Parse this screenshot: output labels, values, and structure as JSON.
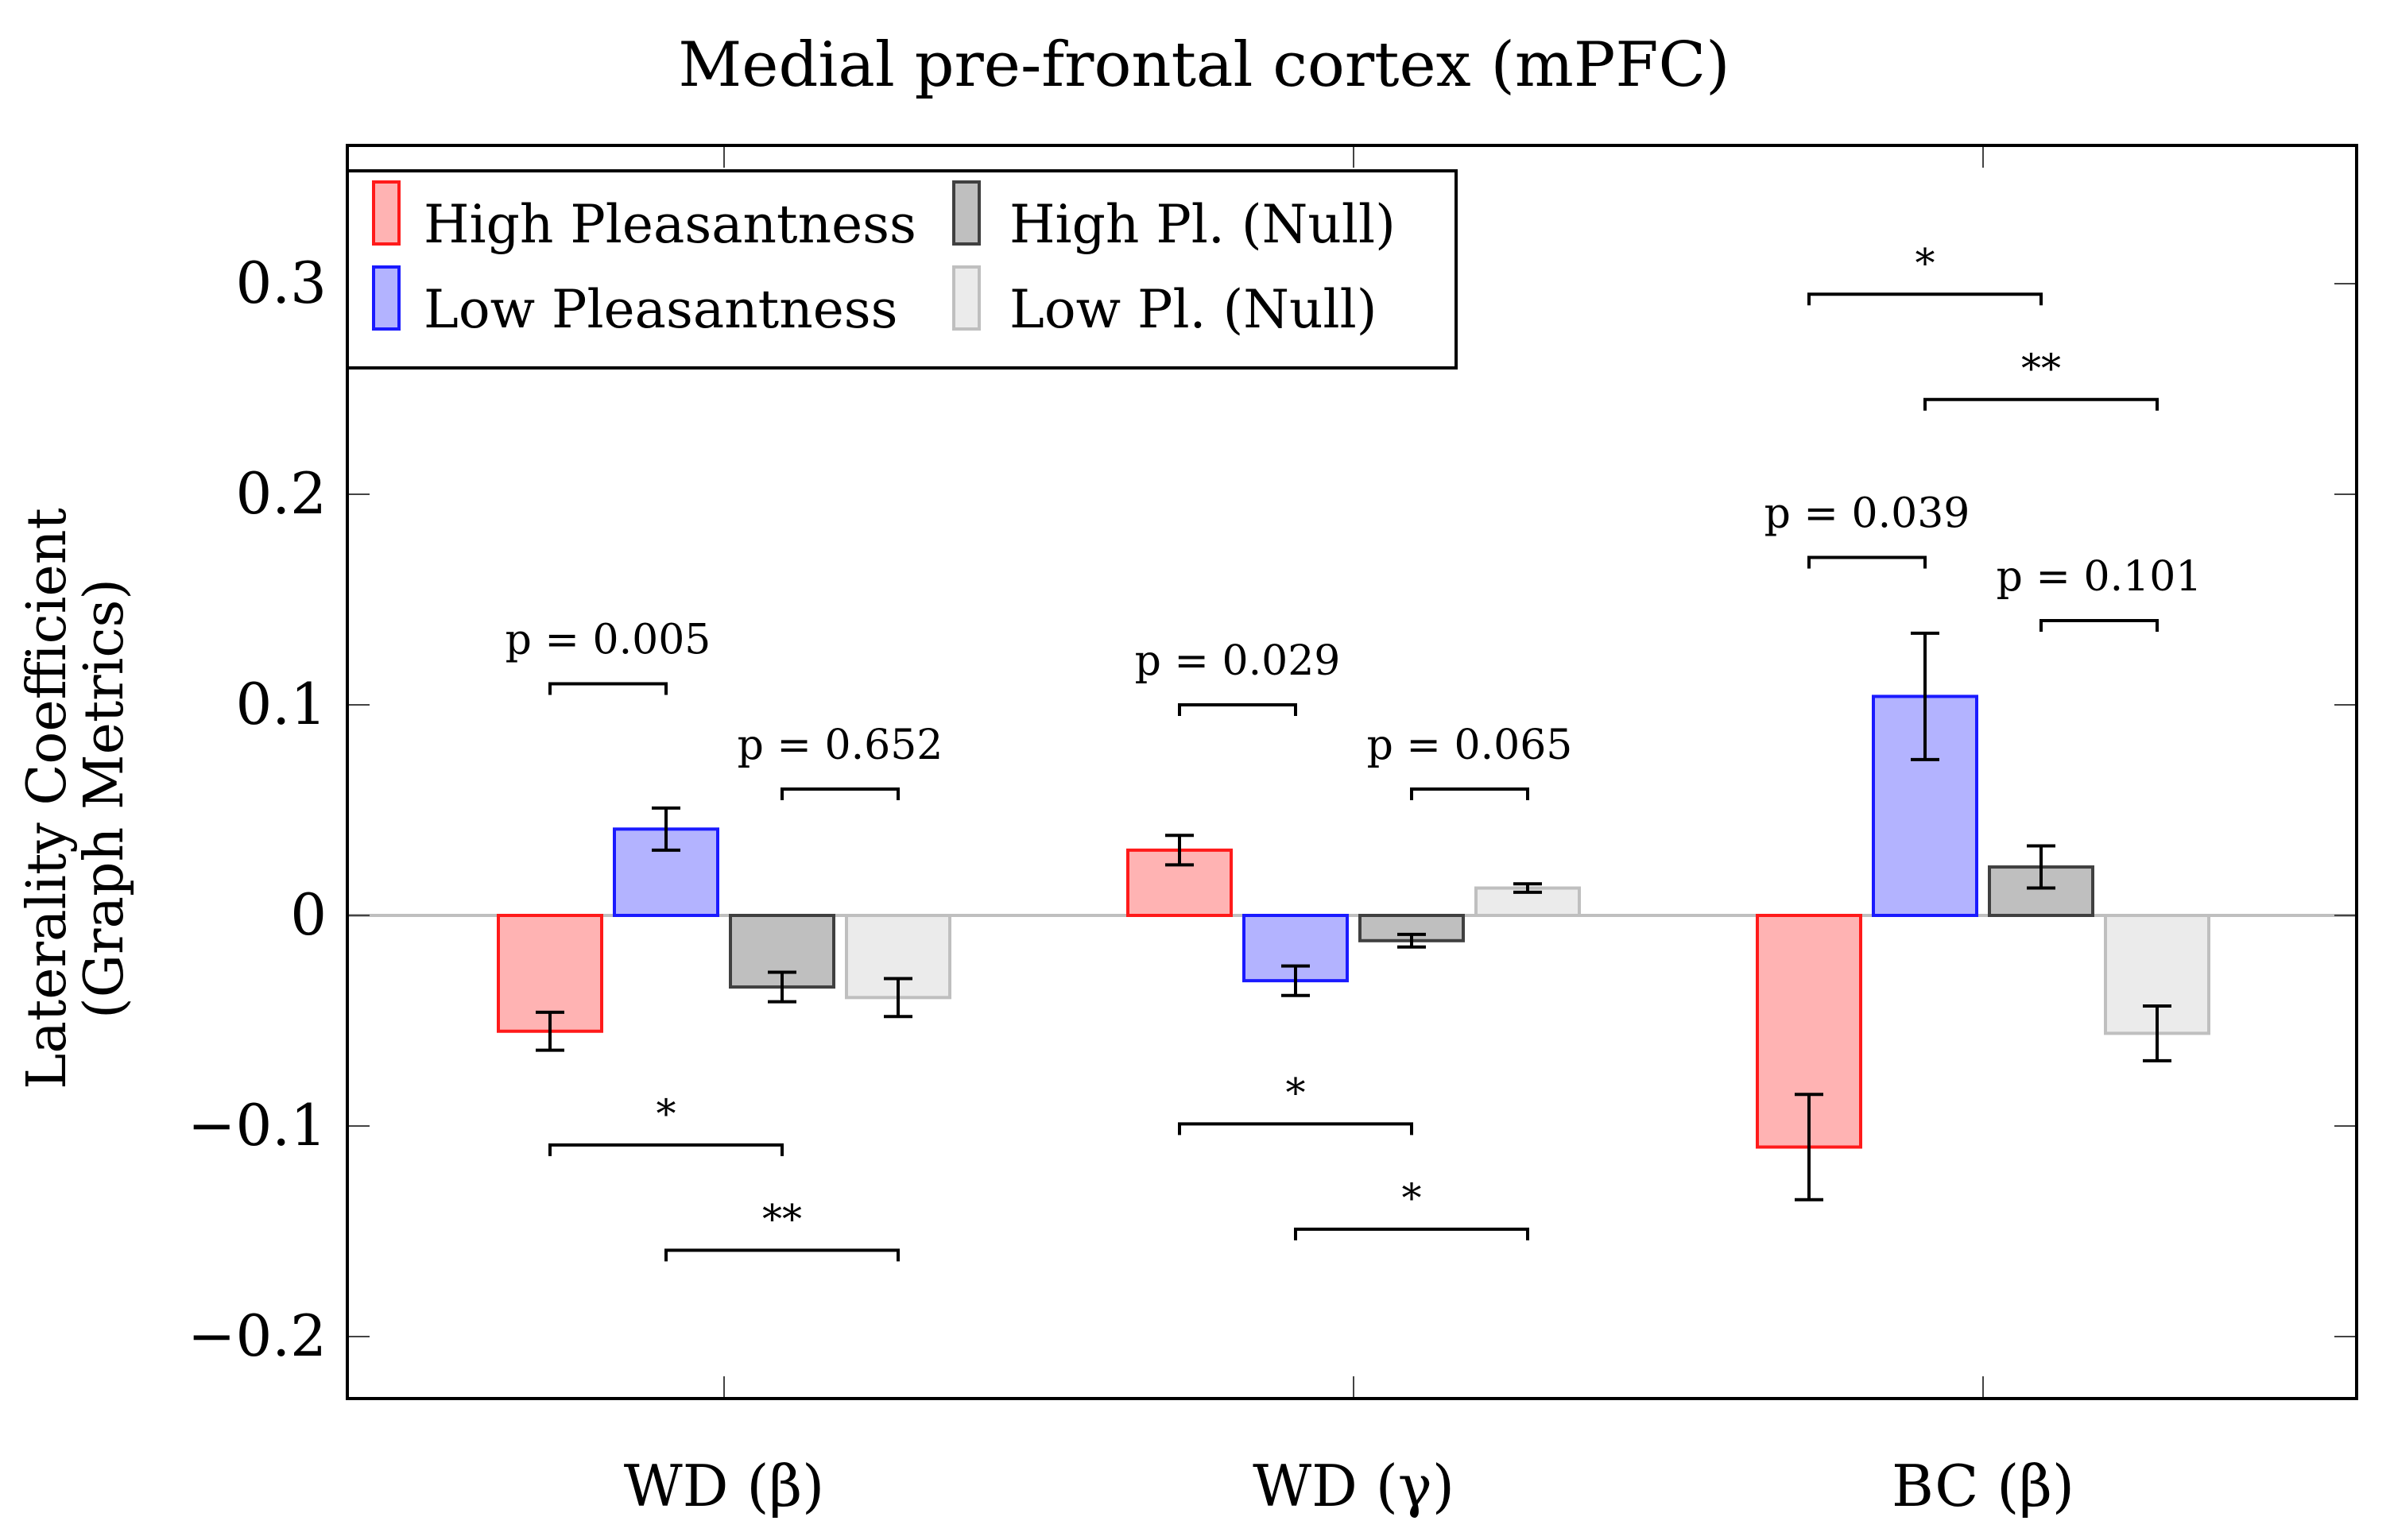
{
  "chart_data": {
    "type": "bar",
    "title": "Medial pre-frontal cortex (mPFC)",
    "xlabel": "",
    "ylabel": [
      "Laterality Coefficient",
      "(Graph Metrics)"
    ],
    "ylim": [
      -0.23,
      0.35
    ],
    "yticks": [
      -0.2,
      -0.1,
      0,
      0.1,
      0.2,
      0.3
    ],
    "ytick_labels": [
      "−0.2",
      "−0.1",
      "0",
      "0.1",
      "0.2",
      "0.3"
    ],
    "categories": [
      "WD (β)",
      "WD (γ)",
      "BC (β)"
    ],
    "legend_position": "top-left",
    "series": [
      {
        "name": "High Pleasantness",
        "fill": "#ffb3b3",
        "stroke": "#ff1a1a",
        "values": [
          -0.055,
          0.031,
          -0.11
        ],
        "errors": [
          0.009,
          0.007,
          0.025
        ]
      },
      {
        "name": "Low Pleasantness",
        "fill": "#b3b3ff",
        "stroke": "#1a1aff",
        "values": [
          0.041,
          -0.031,
          0.104
        ],
        "errors": [
          0.01,
          0.007,
          0.03
        ]
      },
      {
        "name": "High Pl. (Null)",
        "fill": "#bfbfbf",
        "stroke": "#404040",
        "values": [
          -0.034,
          -0.012,
          0.023
        ],
        "errors": [
          0.007,
          0.003,
          0.01
        ]
      },
      {
        "name": "Low Pl. (Null)",
        "fill": "#ebebeb",
        "stroke": "#bfbfbf",
        "values": [
          -0.039,
          0.013,
          -0.056
        ],
        "errors": [
          0.009,
          0.002,
          0.013
        ]
      }
    ],
    "brackets": [
      {
        "category": 0,
        "from": 0,
        "to": 1,
        "y": 0.11,
        "label": "p = 0.005"
      },
      {
        "category": 0,
        "from": 2,
        "to": 3,
        "y": 0.06,
        "label": "p = 0.652"
      },
      {
        "category": 0,
        "from": 0,
        "to": 2,
        "y": -0.109,
        "label": "*"
      },
      {
        "category": 0,
        "from": 1,
        "to": 3,
        "y": -0.159,
        "label": "**"
      },
      {
        "category": 1,
        "from": 0,
        "to": 1,
        "y": 0.1,
        "label": "p = 0.029"
      },
      {
        "category": 1,
        "from": 2,
        "to": 3,
        "y": 0.06,
        "label": "p = 0.065"
      },
      {
        "category": 1,
        "from": 0,
        "to": 2,
        "y": -0.099,
        "label": "*"
      },
      {
        "category": 1,
        "from": 1,
        "to": 3,
        "y": -0.149,
        "label": "*"
      },
      {
        "category": 2,
        "from": 0,
        "to": 2,
        "y": 0.295,
        "label": "*"
      },
      {
        "category": 2,
        "from": 1,
        "to": 3,
        "y": 0.245,
        "label": "**"
      },
      {
        "category": 2,
        "from": 0,
        "to": 1,
        "y": 0.17,
        "label": "p = 0.039"
      },
      {
        "category": 2,
        "from": 2,
        "to": 3,
        "y": 0.14,
        "label": "p = 0.101"
      }
    ]
  }
}
